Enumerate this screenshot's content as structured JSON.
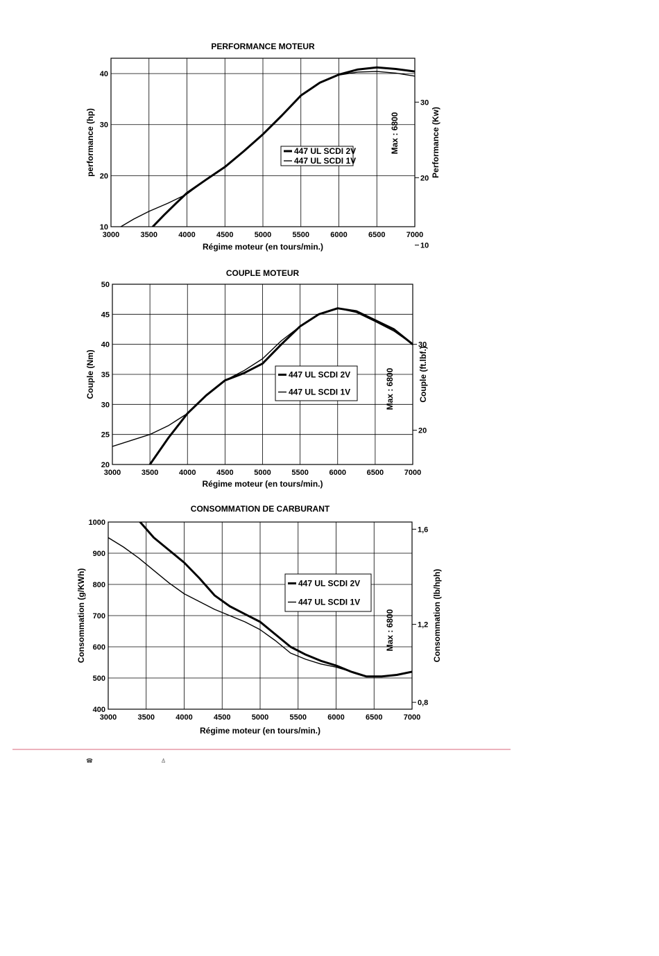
{
  "footer": {
    "phone_icon": "phone-icon",
    "person_icon": "person-icon",
    "rule_color": "#d9667a"
  },
  "chart_data": [
    {
      "type": "line",
      "title": "PERFORMANCE MOTEUR",
      "xlabel": "Régime moteur (en tours/min.)",
      "ylabel": "performance (hp)",
      "y2label": "Performance (Kw)",
      "xlim": [
        3000,
        7000
      ],
      "ylim": [
        10,
        43
      ],
      "xticks": [
        "3000",
        "3500",
        "4000",
        "4500",
        "5000",
        "5500",
        "6000",
        "6500",
        "7000"
      ],
      "yticks": [
        10,
        20,
        30,
        40
      ],
      "ytick_labels": [
        "10",
        "20",
        "30",
        "40"
      ],
      "y2ticks": [
        10,
        20,
        30
      ],
      "y2ticks_at": [
        6.4,
        19.6,
        34.4
      ],
      "annotation": "Max : 6800",
      "grid": true,
      "legend": "center",
      "series": [
        {
          "name": "447 UL SCDI 2V",
          "width": 3,
          "x": [
            3550,
            3700,
            3850,
            4000,
            4250,
            4500,
            4750,
            5000,
            5250,
            5500,
            5750,
            6000,
            6250,
            6500,
            6750,
            7000
          ],
          "y": [
            10,
            12.3,
            14.5,
            16.6,
            19.2,
            21.7,
            24.8,
            28.1,
            31.8,
            35.7,
            38.2,
            39.8,
            40.8,
            41.2,
            40.9,
            40.4
          ]
        },
        {
          "name": "447 UL SCDI 1V",
          "width": 1.4,
          "x": [
            3130,
            3300,
            3500,
            3750,
            4000,
            4250,
            4500,
            4750,
            5000,
            5250,
            5500,
            5750,
            6000,
            6250,
            6500,
            6750,
            7000
          ],
          "y": [
            10,
            11.5,
            13,
            14.6,
            16.4,
            19.2,
            21.7,
            24.8,
            28.1,
            31.8,
            35.7,
            38.2,
            39.7,
            40.3,
            40.4,
            40.1,
            39.5
          ]
        }
      ]
    },
    {
      "type": "line",
      "title": "COUPLE MOTEUR",
      "xlabel": "Régime moteur (en tours/min.)",
      "ylabel": "Couple (Nm)",
      "y2label": "Couple (ft.lbf.)",
      "xlim": [
        3000,
        7000
      ],
      "ylim": [
        20,
        50
      ],
      "xticks": [
        "3000",
        "3500",
        "4000",
        "4500",
        "5000",
        "5500",
        "6000",
        "6500",
        "7000"
      ],
      "yticks": [
        20,
        25,
        30,
        35,
        40,
        45,
        50
      ],
      "ytick_labels": [
        "20",
        "25",
        "30",
        "35",
        "40",
        "45",
        "50"
      ],
      "y2ticks": [
        20,
        30
      ],
      "y2ticks_at": [
        25.7,
        40.0
      ],
      "annotation": "Max : 6800",
      "grid": true,
      "legend": "center",
      "series": [
        {
          "name": "447 UL SCDI 2V",
          "width": 3,
          "x": [
            3500,
            3750,
            4000,
            4250,
            4500,
            4750,
            5000,
            5250,
            5500,
            5750,
            6000,
            6250,
            6500,
            6750,
            7000
          ],
          "y": [
            20,
            24.5,
            28.5,
            31.5,
            34,
            35.2,
            36.8,
            40,
            43,
            45,
            46,
            45.5,
            44,
            42.5,
            40
          ]
        },
        {
          "name": "447 UL SCDI 1V",
          "width": 1.4,
          "x": [
            3000,
            3250,
            3500,
            3750,
            4000,
            4250,
            4500,
            4750,
            5000,
            5250,
            5500,
            5750,
            6000,
            6250,
            6500,
            6750,
            7000
          ],
          "y": [
            23,
            24,
            25,
            26.5,
            28.5,
            31.5,
            34,
            35.6,
            37.6,
            40.6,
            43,
            45,
            46,
            45.3,
            43.8,
            42.2,
            40
          ]
        }
      ]
    },
    {
      "type": "line",
      "title": "CONSOMMATION DE CARBURANT",
      "xlabel": "Régime moteur (en tours/min.)",
      "ylabel": "Consommation (g/KWh)",
      "y2label": "Consommation (lb/hph)",
      "xlim": [
        3000,
        7000
      ],
      "ylim": [
        400,
        1000
      ],
      "xticks": [
        "3000",
        "3500",
        "4000",
        "4500",
        "5000",
        "5500",
        "6000",
        "6500",
        "7000"
      ],
      "yticks": [
        400,
        500,
        600,
        700,
        800,
        900,
        1000
      ],
      "ytick_labels": [
        "400",
        "500",
        "600",
        "700",
        "800",
        "900",
        "1000"
      ],
      "y2ticks": [
        "0,8",
        "1,2",
        "1,6"
      ],
      "y2ticks_at": [
        422,
        672,
        977
      ],
      "annotation": "Max : 6800",
      "grid": true,
      "legend": "top-right",
      "series": [
        {
          "name": "447 UL SCDI 2V",
          "width": 3,
          "x": [
            3420,
            3600,
            3800,
            4000,
            4200,
            4400,
            4600,
            4800,
            5000,
            5200,
            5400,
            5600,
            5800,
            6000,
            6200,
            6400,
            6600,
            6800,
            7000
          ],
          "y": [
            1000,
            950,
            910,
            870,
            820,
            765,
            730,
            705,
            680,
            640,
            600,
            575,
            555,
            540,
            520,
            505,
            505,
            510,
            520
          ]
        },
        {
          "name": "447 UL SCDI 1V",
          "width": 1.4,
          "x": [
            3000,
            3200,
            3400,
            3600,
            3800,
            4000,
            4200,
            4400,
            4600,
            4800,
            5000,
            5200,
            5400,
            5600,
            5800,
            6000,
            6200,
            6400,
            6600,
            6800,
            7000
          ],
          "y": [
            950,
            920,
            885,
            845,
            805,
            770,
            745,
            720,
            700,
            680,
            655,
            620,
            580,
            560,
            545,
            535,
            520,
            505,
            505,
            510,
            520
          ]
        }
      ]
    }
  ]
}
